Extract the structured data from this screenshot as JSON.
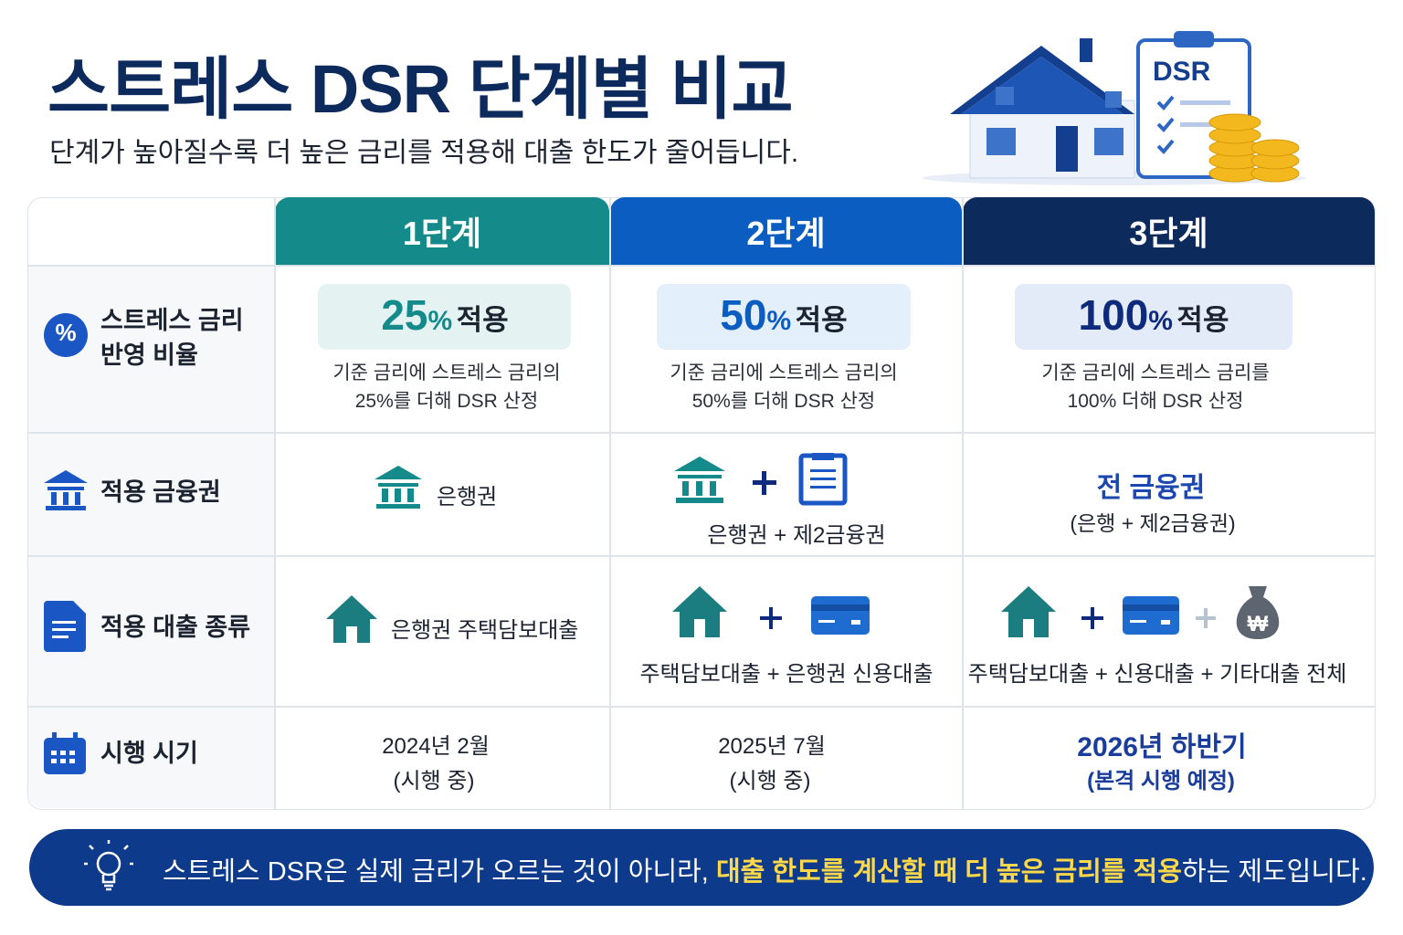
{
  "header": {
    "title": "스트레스 DSR 단계별 비교",
    "subtitle": "단계가 높아질수록 더 높은 금리를 적용해 대출 한도가 줄어듭니다."
  },
  "illustration": {
    "badge": "DSR"
  },
  "table": {
    "stages": [
      "1단계",
      "2단계",
      "3단계"
    ],
    "rows": [
      {
        "label": [
          "스트레스 금리",
          "반영 비율"
        ],
        "icon_text": "%",
        "cells": [
          {
            "rate": "25",
            "unit": "%",
            "suffix": "적용",
            "note": [
              "기준 금리에 스트레스 금리의",
              "25%를 더해 DSR 산정"
            ]
          },
          {
            "rate": "50",
            "unit": "%",
            "suffix": "적용",
            "note": [
              "기준 금리에 스트레스 금리의",
              "50%를 더해 DSR 산정"
            ]
          },
          {
            "rate": "100",
            "unit": "%",
            "suffix": "적용",
            "note": [
              "기준 금리에 스트레스 금리를",
              "100% 더해 DSR 산정"
            ]
          }
        ]
      },
      {
        "label": [
          "적용 금융권"
        ],
        "cells": [
          {
            "text": [
              "은행권"
            ]
          },
          {
            "text": [
              "은행권 + 제2금융권"
            ]
          },
          {
            "headline": "전 금융권",
            "text": [
              "(은행 + 제2금융권)"
            ]
          }
        ]
      },
      {
        "label": [
          "적용 대출 종류"
        ],
        "won_icon": "₩",
        "cells": [
          {
            "text": [
              "은행권 주택담보대출"
            ]
          },
          {
            "text": [
              "주택담보대출 + 은행권 신용대출"
            ]
          },
          {
            "text": [
              "주택담보대출 + 신용대출 + 기타대출 전체"
            ]
          }
        ]
      },
      {
        "label": [
          "시행 시기"
        ],
        "cells": [
          {
            "text": [
              "2024년 2월",
              "(시행 중)"
            ]
          },
          {
            "text": [
              "2025년 7월",
              "(시행 중)"
            ]
          },
          {
            "text": [
              "2026년 하반기",
              "(본격 시행 예정)"
            ]
          }
        ]
      }
    ]
  },
  "footer": {
    "before": "스트레스 DSR은 실제 금리가 오르는 것이 아니라, ",
    "highlight": "대출 한도를 계산할 때 더 높은 금리를 적용",
    "after": "하는 제도입니다."
  }
}
